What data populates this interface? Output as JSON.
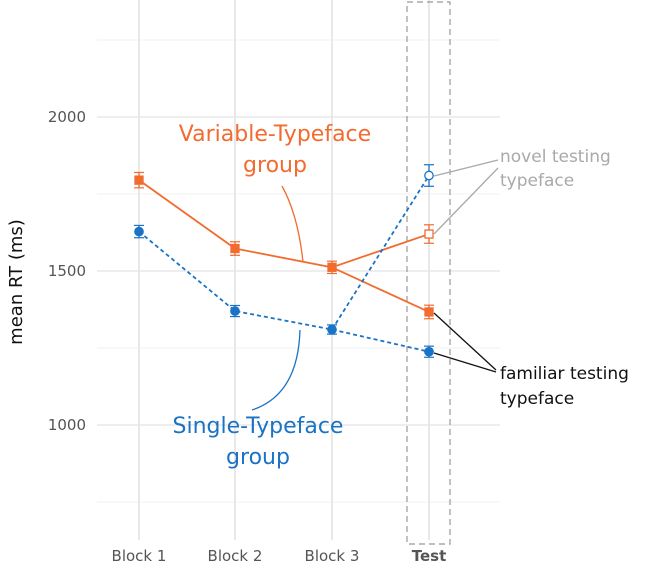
{
  "chart_data": {
    "type": "line",
    "categories": [
      "Block 1",
      "Block 2",
      "Block 3",
      "Test"
    ],
    "emphasized_category": "Test",
    "ylabel": "mean RT (ms)",
    "yticks": [
      1000,
      1500,
      2000
    ],
    "ylim": [
      700,
      2370
    ],
    "grid": true,
    "series": [
      {
        "name": "Variable-Typeface group",
        "color": "#f26b2f",
        "line_style": "solid",
        "marker": "square",
        "points": [
          {
            "x": "Block 1",
            "y": 1795,
            "err": 25
          },
          {
            "x": "Block 2",
            "y": 1573,
            "err": 22
          },
          {
            "x": "Block 3",
            "y": 1512,
            "err": 20
          },
          {
            "x": "Test",
            "y": 1367,
            "err": 22,
            "condition": "familiar testing typeface"
          }
        ],
        "test_novel": {
          "x": "Test",
          "y": 1620,
          "err": 30,
          "condition": "novel testing typeface"
        }
      },
      {
        "name": "Single-Typeface group",
        "color": "#1a73c4",
        "line_style": "dashed",
        "marker": "circle",
        "points": [
          {
            "x": "Block 1",
            "y": 1628,
            "err": 20
          },
          {
            "x": "Block 2",
            "y": 1370,
            "err": 18
          },
          {
            "x": "Block 3",
            "y": 1310,
            "err": 15
          },
          {
            "x": "Test",
            "y": 1238,
            "err": 18,
            "condition": "familiar testing typeface"
          }
        ],
        "test_novel": {
          "x": "Test",
          "y": 1810,
          "err": 35,
          "condition": "novel testing typeface"
        }
      }
    ],
    "labels": {
      "variable_line1": "Variable-Typeface",
      "variable_line2": "group",
      "single_line1": "Single-Typeface",
      "single_line2": "group",
      "novel_line1": "novel testing",
      "novel_line2": "typeface",
      "familiar_line1": "familiar testing",
      "familiar_line2": "typeface"
    }
  }
}
